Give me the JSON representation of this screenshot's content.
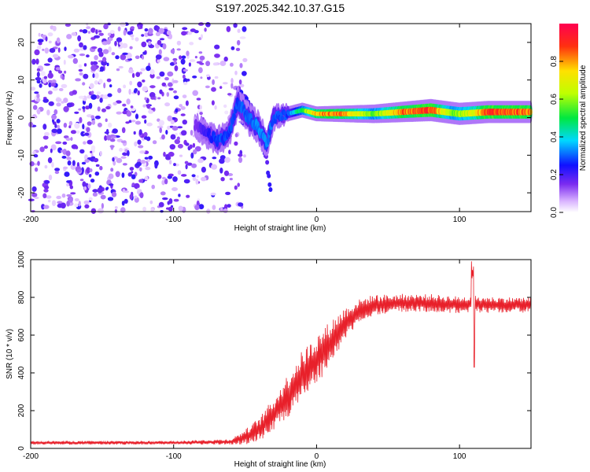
{
  "title": "S197.2025.342.10.37.G15",
  "colors": {
    "snr_line": "#e8202a",
    "scatter_base": "#7b2cf0",
    "axis": "#000000"
  },
  "chart_data": [
    {
      "type": "heatmap",
      "title": "S197.2025.342.10.37.G15",
      "xlabel": "Height of straight line (km)",
      "ylabel": "Frequency (Hz)",
      "xlim": [
        -200,
        150
      ],
      "ylim": [
        -25,
        25
      ],
      "xticks": [
        -200,
        -100,
        0,
        100
      ],
      "yticks": [
        -20,
        -10,
        0,
        10,
        20
      ],
      "colorbar": {
        "label": "Normalized spectral amplitude",
        "range": [
          0,
          1
        ],
        "ticks": [
          "0.0",
          "0.2",
          "0.4",
          "0.6",
          "0.8"
        ],
        "tick_values": [
          0.0,
          0.2,
          0.4,
          0.6,
          0.8
        ]
      },
      "ridge": {
        "description_points": [
          [
            -85,
            -2
          ],
          [
            -78,
            -4
          ],
          [
            -70,
            -6
          ],
          [
            -62,
            -5
          ],
          [
            -55,
            4
          ],
          [
            -48,
            0
          ],
          [
            -40,
            -3
          ],
          [
            -35,
            -7
          ],
          [
            -30,
            0
          ],
          [
            -20,
            1
          ],
          [
            -10,
            2
          ],
          [
            0,
            1
          ],
          [
            20,
            1
          ],
          [
            40,
            1
          ],
          [
            60,
            1.5
          ],
          [
            80,
            2
          ],
          [
            100,
            1
          ],
          [
            120,
            1.5
          ],
          [
            150,
            1.5
          ]
        ],
        "ridge_widths_hz": [
          [
            -85,
            3
          ],
          [
            -60,
            3.5
          ],
          [
            -40,
            4
          ],
          [
            -20,
            2
          ],
          [
            0,
            2
          ],
          [
            40,
            2.5
          ],
          [
            80,
            3
          ],
          [
            150,
            3
          ]
        ],
        "ridge_amplitude": [
          [
            -85,
            0.15
          ],
          [
            -70,
            0.3
          ],
          [
            -55,
            0.3
          ],
          [
            -40,
            0.35
          ],
          [
            -20,
            0.3
          ],
          [
            -5,
            0.7
          ],
          [
            0,
            0.85
          ],
          [
            10,
            0.9
          ],
          [
            20,
            0.85
          ],
          [
            40,
            0.6
          ],
          [
            60,
            0.9
          ],
          [
            80,
            0.95
          ],
          [
            95,
            0.6
          ],
          [
            110,
            0.75
          ],
          [
            120,
            0.95
          ],
          [
            150,
            0.9
          ]
        ]
      },
      "noise": {
        "x_range": [
          -200,
          -50
        ],
        "y_range": [
          -25,
          25
        ],
        "amplitude_range": [
          0.02,
          0.22
        ]
      },
      "secondary_branch": [
        [
          -55,
          8
        ],
        [
          -50,
          5
        ],
        [
          -45,
          2
        ],
        [
          -40,
          -5
        ],
        [
          -35,
          -11
        ],
        [
          -32,
          -20
        ]
      ]
    },
    {
      "type": "line",
      "title": "",
      "xlabel": "Height of straight line (km)",
      "ylabel": "SNR (10 * v/v)",
      "xlim": [
        -200,
        150
      ],
      "ylim": [
        0,
        1000
      ],
      "xticks": [
        -200,
        -100,
        0,
        100
      ],
      "yticks": [
        0,
        200,
        400,
        600,
        800,
        1000
      ],
      "series": [
        {
          "name": "SNR",
          "envelope": [
            [
              -200,
              30
            ],
            [
              -150,
              30
            ],
            [
              -100,
              30
            ],
            [
              -60,
              35
            ],
            [
              -50,
              60
            ],
            [
              -40,
              100
            ],
            [
              -30,
              180
            ],
            [
              -20,
              280
            ],
            [
              -10,
              380
            ],
            [
              0,
              470
            ],
            [
              10,
              560
            ],
            [
              20,
              660
            ],
            [
              30,
              730
            ],
            [
              40,
              760
            ],
            [
              60,
              770
            ],
            [
              80,
              770
            ],
            [
              100,
              760
            ],
            [
              110,
              765
            ],
            [
              120,
              760
            ],
            [
              150,
              760
            ]
          ],
          "ripple_amplitude": [
            [
              -200,
              10
            ],
            [
              -100,
              10
            ],
            [
              -60,
              15
            ],
            [
              -50,
              40
            ],
            [
              -30,
              90
            ],
            [
              -10,
              140
            ],
            [
              10,
              120
            ],
            [
              30,
              60
            ],
            [
              50,
              50
            ],
            [
              100,
              45
            ],
            [
              150,
              40
            ]
          ],
          "spike": {
            "x": 109,
            "max": 1000,
            "min": 430
          }
        }
      ]
    }
  ]
}
